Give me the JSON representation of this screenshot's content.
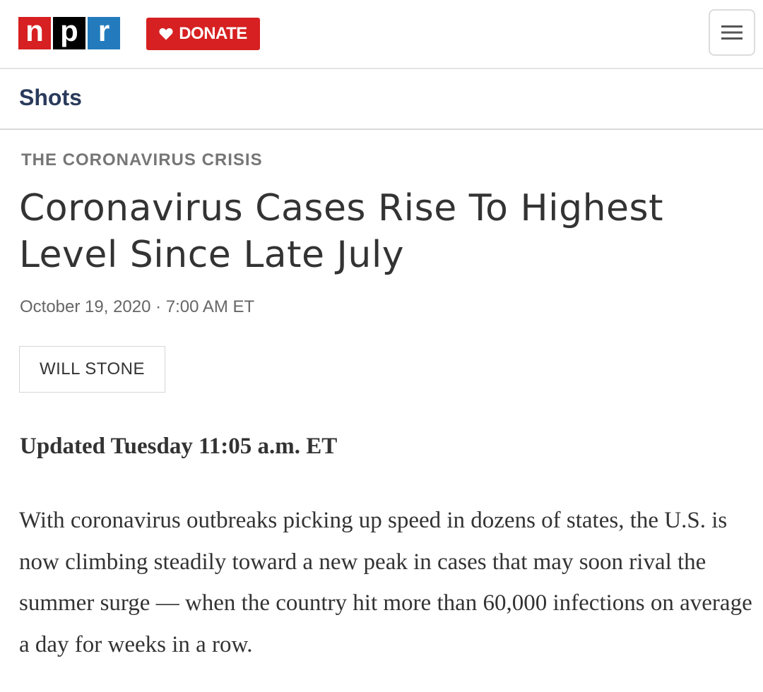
{
  "header": {
    "logo": {
      "letters": [
        "n",
        "p",
        "r"
      ],
      "colors": [
        "#d62021",
        "#000000",
        "#237bbd"
      ]
    },
    "donate_label": "DONATE",
    "donate_icon": "heart-icon",
    "menu_icon": "hamburger-icon"
  },
  "section": {
    "label": "Shots"
  },
  "article": {
    "slug": "THE CORONAVIRUS CRISIS",
    "headline": "Coronavirus Cases Rise To Highest Level Since Late July",
    "dateline": "October 19, 2020 · 7:00 AM ET",
    "byline": "WILL STONE",
    "updated": "Updated Tuesday 11:05 a.m. ET",
    "paragraph": "With coronavirus outbreaks picking up speed in dozens of states, the U.S. is now climbing steadily toward a new peak in cases that may soon rival the summer surge — when the country hit more than 60,000 infections on average a day for weeks in a row."
  },
  "colors": {
    "brand_red": "#d62021",
    "section_navy": "#2a3b5c"
  }
}
